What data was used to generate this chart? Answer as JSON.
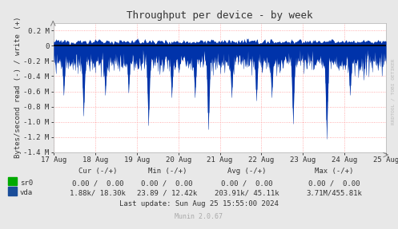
{
  "title": "Throughput per device - by week",
  "ylabel": "Bytes/second read (-) / write (+)",
  "xlabel_dates": [
    "17 Aug",
    "18 Aug",
    "19 Aug",
    "20 Aug",
    "21 Aug",
    "22 Aug",
    "23 Aug",
    "24 Aug",
    "25 Aug"
  ],
  "ylim": [
    -1400000.0,
    300000.0
  ],
  "yticks": [
    -1400000.0,
    -1200000.0,
    -1000000.0,
    -800000.0,
    -600000.0,
    -400000.0,
    -200000.0,
    0.0,
    200000.0
  ],
  "ytick_labels": [
    "-1.4 M",
    "-1.2 M",
    "-1.0 M",
    "-0.8 M",
    "-0.6 M",
    "-0.4 M",
    "-0.2 M",
    "0",
    "0.2 M"
  ],
  "bg_color": "#e8e8e8",
  "plot_bg_color": "#ffffff",
  "grid_color": "#ff9999",
  "line_color_vda": "#0033aa",
  "line_color_sr0": "#00aa00",
  "legend_colors": [
    "#00aa00",
    "#1a4d99"
  ],
  "last_update": "Last update: Sun Aug 25 15:55:00 2024",
  "munin_version": "Munin 2.0.67",
  "watermark": "RRDTOOL / TOBI OETIKER",
  "num_points": 672,
  "write_mean": 55000.0,
  "write_std": 25000.0,
  "read_mean": 220000.0,
  "read_std": 70000.0,
  "spike_x_fracs": [
    0.03,
    0.09,
    0.155,
    0.225,
    0.285,
    0.355,
    0.425,
    0.465,
    0.535,
    0.61,
    0.655,
    0.72,
    0.82,
    0.89
  ],
  "spike_depths": [
    -650000.0,
    -920000.0,
    -650000.0,
    -620000.0,
    -1050000.0,
    -680000.0,
    -680000.0,
    -1100000.0,
    -680000.0,
    -720000.0,
    -680000.0,
    -1020000.0,
    -1220000.0,
    -650000.0
  ]
}
